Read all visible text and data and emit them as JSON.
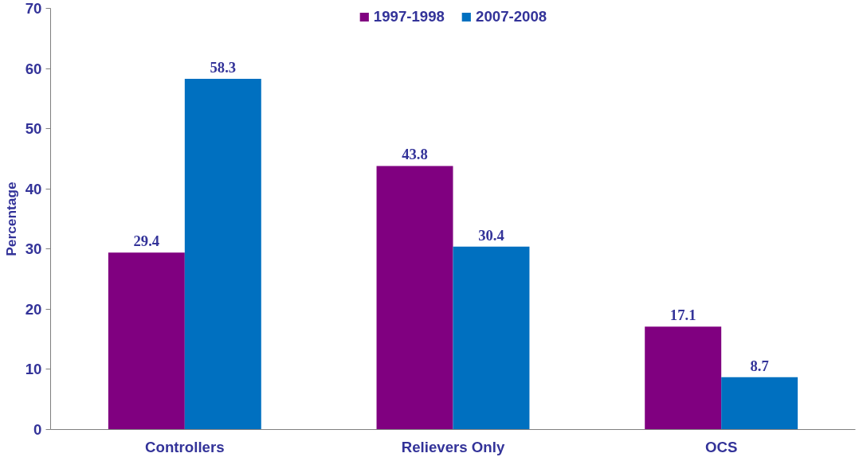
{
  "chart_data": {
    "type": "bar",
    "ylabel": "Percentage",
    "categories": [
      "Controllers",
      "Relievers Only",
      "OCS"
    ],
    "series": [
      {
        "name": "1997-1998",
        "color": "#800080",
        "values": [
          29.4,
          43.8,
          17.1
        ]
      },
      {
        "name": "2007-2008",
        "color": "#0070c0",
        "values": [
          58.3,
          30.4,
          8.7
        ]
      }
    ],
    "ylim": [
      0,
      70
    ],
    "yticks": [
      0,
      10,
      20,
      30,
      40,
      50,
      60,
      70
    ],
    "grid": false,
    "legend": "top",
    "data_labels": true
  }
}
